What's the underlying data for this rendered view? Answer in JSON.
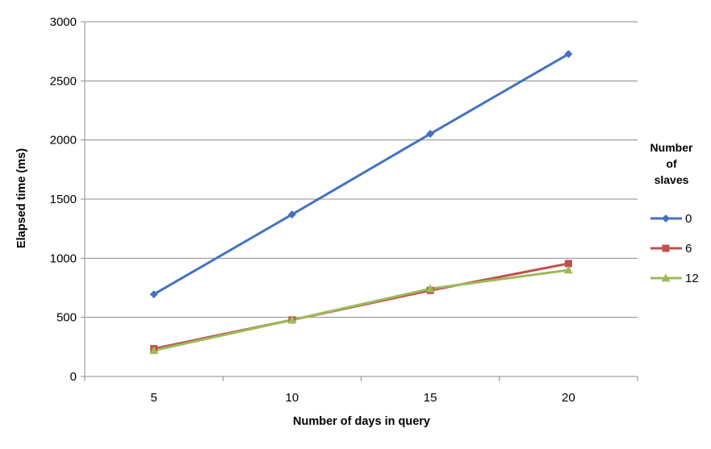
{
  "chart_data": {
    "type": "line",
    "title": "",
    "xlabel": "Number of days in query",
    "ylabel": "Elapsed time (ms)",
    "categories": [
      "5",
      "10",
      "15",
      "20"
    ],
    "ylim": [
      0,
      3000
    ],
    "yticks": [
      0,
      500,
      1000,
      1500,
      2000,
      2500,
      3000
    ],
    "grid": "horizontal",
    "legend": {
      "title_lines": [
        "Number",
        "of",
        "slaves"
      ],
      "placement": "right"
    },
    "series": [
      {
        "name": "0",
        "values": [
          695,
          1370,
          2052,
          2727
        ],
        "color": "#4572C4",
        "marker": "diamond"
      },
      {
        "name": "6",
        "values": [
          235,
          478,
          728,
          955
        ],
        "color": "#C0504D",
        "marker": "square"
      },
      {
        "name": "12",
        "values": [
          220,
          478,
          742,
          900
        ],
        "color": "#9BBB59",
        "marker": "triangle"
      }
    ]
  }
}
